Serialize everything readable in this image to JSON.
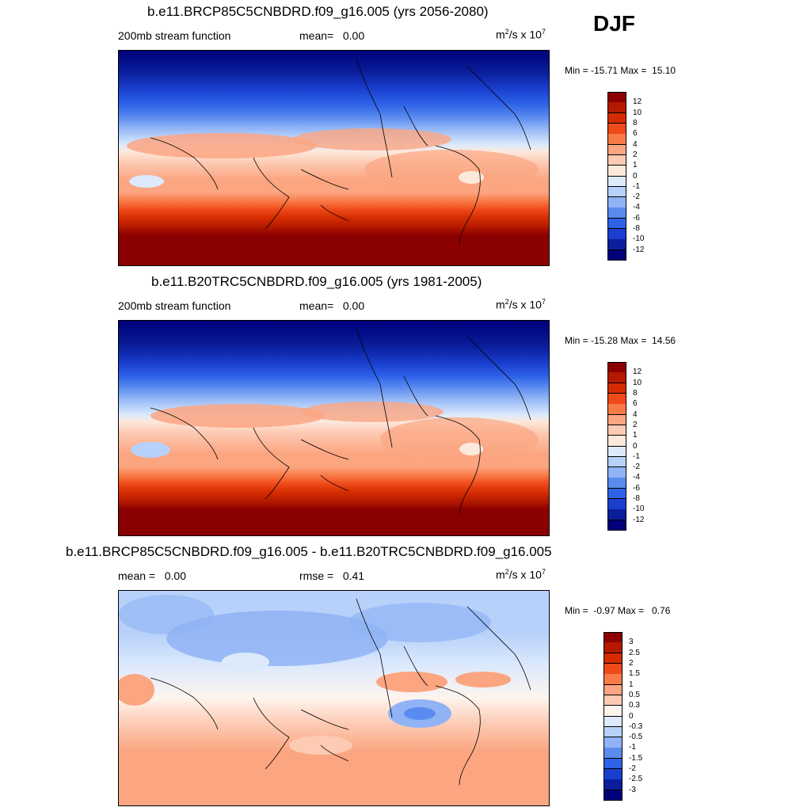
{
  "season": "DJF",
  "chart_data": [
    {
      "type": "heatmap",
      "title": "b.e11.BRCP85C5CNBDRD.f09_g16.005 (yrs 2056-2080)",
      "left_label": "200mb stream function",
      "center_label": "mean=   0.00",
      "units_base": "m",
      "units_sup1": "2",
      "units_mid": "/s x 10",
      "units_sup2": "7",
      "minmax": "Min = -15.71 Max =  15.10",
      "levels": [
        "12",
        "10",
        "8",
        "6",
        "4",
        "2",
        "1",
        "0",
        "-1",
        "-2",
        "-4",
        "-6",
        "-8",
        "-10",
        "-12"
      ],
      "colors": [
        "#8b0000",
        "#b51a00",
        "#d42c00",
        "#ef4a1a",
        "#f87b47",
        "#fba581",
        "#fdcbb4",
        "#fde9dc",
        "#dceafc",
        "#b7d1fa",
        "#8fb3f5",
        "#5a8bef",
        "#2e63e8",
        "#1a3fcf",
        "#0a1e9b",
        "#00007a"
      ],
      "min": -15.71,
      "max": 15.1
    },
    {
      "type": "heatmap",
      "title": "b.e11.B20TRC5CNBDRD.f09_g16.005 (yrs 1981-2005)",
      "left_label": "200mb stream function",
      "center_label": "mean=   0.00",
      "units_base": "m",
      "units_sup1": "2",
      "units_mid": "/s x 10",
      "units_sup2": "7",
      "minmax": "Min = -15.28 Max =  14.56",
      "levels": [
        "12",
        "10",
        "8",
        "6",
        "4",
        "2",
        "1",
        "0",
        "-1",
        "-2",
        "-4",
        "-6",
        "-8",
        "-10",
        "-12"
      ],
      "colors": [
        "#8b0000",
        "#b51a00",
        "#d42c00",
        "#ef4a1a",
        "#f87b47",
        "#fba581",
        "#fdcbb4",
        "#fde9dc",
        "#dceafc",
        "#b7d1fa",
        "#8fb3f5",
        "#5a8bef",
        "#2e63e8",
        "#1a3fcf",
        "#0a1e9b",
        "#00007a"
      ],
      "min": -15.28,
      "max": 14.56
    },
    {
      "type": "heatmap",
      "title": "b.e11.BRCP85C5CNBDRD.f09_g16.005 - b.e11.B20TRC5CNBDRD.f09_g16.005",
      "left_label": "mean =   0.00",
      "center_label": "rmse =   0.41",
      "units_base": "m",
      "units_sup1": "2",
      "units_mid": "/s x 10",
      "units_sup2": "7",
      "minmax": "Min =  -0.97 Max =   0.76",
      "levels": [
        "3",
        "2.5",
        "2",
        "1.5",
        "1",
        "0.5",
        "0.3",
        "0",
        "-0.3",
        "-0.5",
        "-1",
        "-1.5",
        "-2",
        "-2.5",
        "-3"
      ],
      "colors": [
        "#8b0000",
        "#b51a00",
        "#d42c00",
        "#ef4a1a",
        "#f87b47",
        "#fba581",
        "#fdcbb4",
        "#fef4ee",
        "#dceafc",
        "#b7d1fa",
        "#8fb3f5",
        "#5a8bef",
        "#2e63e8",
        "#1a3fcf",
        "#0a1e9b",
        "#00007a"
      ],
      "min": -0.97,
      "max": 0.76
    }
  ]
}
